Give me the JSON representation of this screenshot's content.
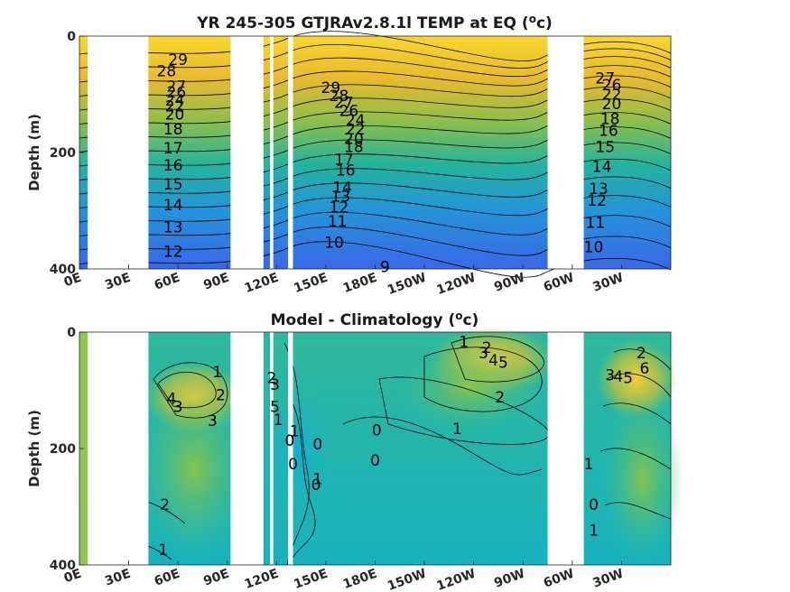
{
  "chart_data": [
    {
      "type": "heatmap",
      "subtype": "contour",
      "title": "YR 245-305 GTJRAv2.8.1l TEMP at EQ (",
      "title_sup": "o",
      "title_unit_tail": "c)",
      "xlabel": "",
      "ylabel": "Depth (m)",
      "y_ticks": [
        "0",
        "200",
        "400"
      ],
      "x_ticks": [
        "0E",
        "30E",
        "60E",
        "90E",
        "120E",
        "150E",
        "180E",
        "150W",
        "120W",
        "90W",
        "60W",
        "30W"
      ],
      "ylim": [
        0,
        400
      ],
      "y_reversed": true,
      "colormap": "parula",
      "land_gaps_lon": [
        [
          5,
          42
        ],
        [
          92,
          112
        ],
        [
          116,
          118
        ],
        [
          127,
          130
        ],
        [
          285,
          307
        ]
      ],
      "contour_labels": [
        {
          "text": "29",
          "lon": 60,
          "depth": 40
        },
        {
          "text": "28",
          "lon": 53,
          "depth": 60
        },
        {
          "text": "27",
          "lon": 59,
          "depth": 86
        },
        {
          "text": "26",
          "lon": 59,
          "depth": 96
        },
        {
          "text": "24",
          "lon": 58,
          "depth": 110
        },
        {
          "text": "22",
          "lon": 58,
          "depth": 120
        },
        {
          "text": "20",
          "lon": 58,
          "depth": 134
        },
        {
          "text": "18",
          "lon": 57,
          "depth": 160
        },
        {
          "text": "17",
          "lon": 57,
          "depth": 192
        },
        {
          "text": "16",
          "lon": 57,
          "depth": 222
        },
        {
          "text": "15",
          "lon": 57,
          "depth": 254
        },
        {
          "text": "14",
          "lon": 57,
          "depth": 290
        },
        {
          "text": "13",
          "lon": 57,
          "depth": 328
        },
        {
          "text": "12",
          "lon": 57,
          "depth": 370
        },
        {
          "text": "29",
          "lon": 153,
          "depth": 88
        },
        {
          "text": "28",
          "lon": 158,
          "depth": 102
        },
        {
          "text": "27",
          "lon": 161,
          "depth": 114
        },
        {
          "text": "26",
          "lon": 164,
          "depth": 128
        },
        {
          "text": "24",
          "lon": 168,
          "depth": 144
        },
        {
          "text": "22",
          "lon": 168,
          "depth": 160
        },
        {
          "text": "20",
          "lon": 167,
          "depth": 176
        },
        {
          "text": "18",
          "lon": 167,
          "depth": 190
        },
        {
          "text": "17",
          "lon": 161,
          "depth": 212
        },
        {
          "text": "16",
          "lon": 162,
          "depth": 230
        },
        {
          "text": "14",
          "lon": 160,
          "depth": 260
        },
        {
          "text": "13",
          "lon": 159,
          "depth": 275
        },
        {
          "text": "12",
          "lon": 158,
          "depth": 294
        },
        {
          "text": "11",
          "lon": 157,
          "depth": 318
        },
        {
          "text": "10",
          "lon": 155,
          "depth": 354
        },
        {
          "text": "9",
          "lon": 186,
          "depth": 396
        },
        {
          "text": "27",
          "lon": 320,
          "depth": 72
        },
        {
          "text": "26",
          "lon": 324,
          "depth": 84
        },
        {
          "text": "22",
          "lon": 324,
          "depth": 100
        },
        {
          "text": "20",
          "lon": 324,
          "depth": 116
        },
        {
          "text": "18",
          "lon": 323,
          "depth": 142
        },
        {
          "text": "16",
          "lon": 322,
          "depth": 162
        },
        {
          "text": "15",
          "lon": 320,
          "depth": 190
        },
        {
          "text": "14",
          "lon": 318,
          "depth": 224
        },
        {
          "text": "13",
          "lon": 316,
          "depth": 262
        },
        {
          "text": "12",
          "lon": 315,
          "depth": 282
        },
        {
          "text": "11",
          "lon": 314,
          "depth": 320
        },
        {
          "text": "10",
          "lon": 313,
          "depth": 362
        }
      ]
    },
    {
      "type": "heatmap",
      "subtype": "contour",
      "title": "Model - Climatology (",
      "title_sup": "o",
      "title_unit_tail": "c)",
      "xlabel": "",
      "ylabel": "Depth (m)",
      "y_ticks": [
        "0",
        "200",
        "400"
      ],
      "x_ticks": [
        "0E",
        "30E",
        "60E",
        "90E",
        "120E",
        "150E",
        "180E",
        "150W",
        "120W",
        "90W",
        "60W",
        "30W"
      ],
      "ylim": [
        0,
        400
      ],
      "y_reversed": true,
      "colormap": "parula",
      "land_gaps_lon": [
        [
          5,
          42
        ],
        [
          92,
          112
        ],
        [
          116,
          118
        ],
        [
          127,
          130
        ],
        [
          285,
          307
        ]
      ],
      "contour_labels": [
        {
          "text": "1",
          "lon": 84,
          "depth": 68
        },
        {
          "text": "2",
          "lon": 86,
          "depth": 108
        },
        {
          "text": "4",
          "lon": 56,
          "depth": 114
        },
        {
          "text": "3",
          "lon": 60,
          "depth": 128
        },
        {
          "text": "3",
          "lon": 81,
          "depth": 152
        },
        {
          "text": "2",
          "lon": 52,
          "depth": 296
        },
        {
          "text": "1",
          "lon": 51,
          "depth": 374
        },
        {
          "text": "2",
          "lon": 117,
          "depth": 78
        },
        {
          "text": "3",
          "lon": 119,
          "depth": 90
        },
        {
          "text": "5",
          "lon": 119,
          "depth": 128
        },
        {
          "text": "1",
          "lon": 121,
          "depth": 150
        },
        {
          "text": "1",
          "lon": 131,
          "depth": 170
        },
        {
          "text": "0",
          "lon": 128,
          "depth": 186
        },
        {
          "text": "0",
          "lon": 145,
          "depth": 192
        },
        {
          "text": "0",
          "lon": 181,
          "depth": 168
        },
        {
          "text": "0",
          "lon": 130,
          "depth": 226
        },
        {
          "text": "0",
          "lon": 180,
          "depth": 220
        },
        {
          "text": "1",
          "lon": 145,
          "depth": 252
        },
        {
          "text": "0",
          "lon": 144,
          "depth": 262
        },
        {
          "text": "1",
          "lon": 234,
          "depth": 16
        },
        {
          "text": "2",
          "lon": 248,
          "depth": 26
        },
        {
          "text": "3",
          "lon": 246,
          "depth": 36
        },
        {
          "text": "4",
          "lon": 252,
          "depth": 48
        },
        {
          "text": "5",
          "lon": 258,
          "depth": 52
        },
        {
          "text": "2",
          "lon": 256,
          "depth": 112
        },
        {
          "text": "1",
          "lon": 230,
          "depth": 166
        },
        {
          "text": "1",
          "lon": 310,
          "depth": 226
        },
        {
          "text": "0",
          "lon": 313,
          "depth": 296
        },
        {
          "text": "1",
          "lon": 313,
          "depth": 340
        },
        {
          "text": "2",
          "lon": 342,
          "depth": 36
        },
        {
          "text": "3",
          "lon": 323,
          "depth": 74
        },
        {
          "text": "4",
          "lon": 328,
          "depth": 76
        },
        {
          "text": "5",
          "lon": 334,
          "depth": 78
        },
        {
          "text": "6",
          "lon": 344,
          "depth": 62
        }
      ]
    }
  ]
}
